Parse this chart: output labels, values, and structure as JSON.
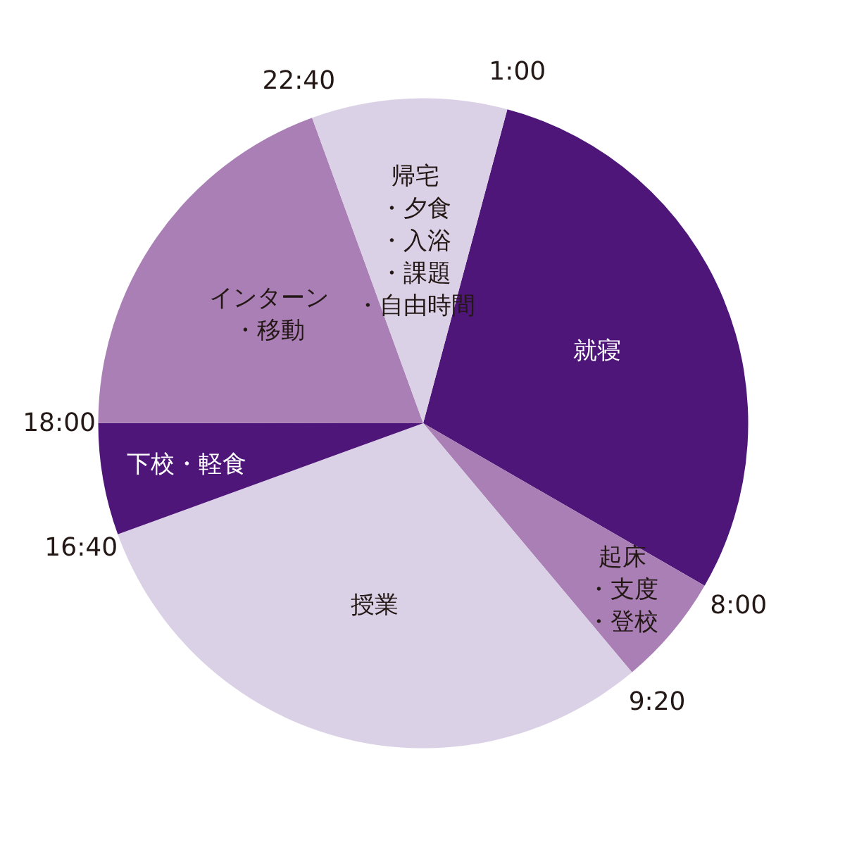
{
  "chart_data": {
    "type": "pie",
    "categories": [
      "就寝",
      "起床・支度・登校",
      "授業",
      "下校・軽食",
      "インターン・移動",
      "帰宅・夕食・入浴・課題・自由時間"
    ],
    "values": [
      29.17,
      5.56,
      30.55,
      5.56,
      19.44,
      9.72
    ],
    "colors": [
      "#4f1679",
      "#a97fb5",
      "#dbd1e6",
      "#4f1679",
      "#a97fb5",
      "#dbd1e6"
    ],
    "annotations": [
      "1:00",
      "8:00",
      "9:20",
      "16:40",
      "18:00",
      "22:40"
    ]
  }
}
